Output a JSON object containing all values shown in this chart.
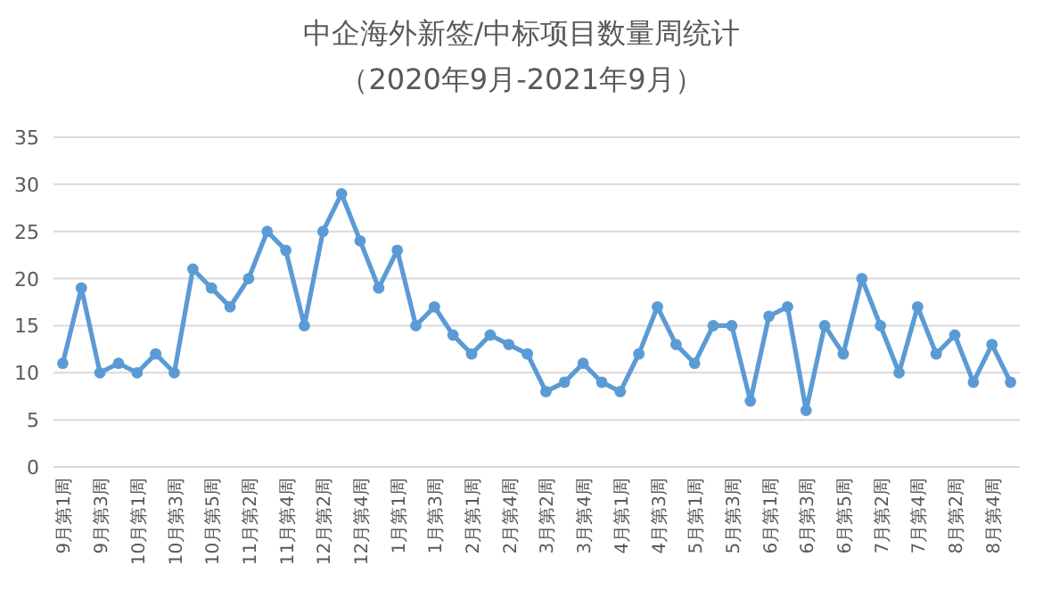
{
  "chart_data": {
    "type": "line",
    "title": "中企海外新签/中标项目数量周统计",
    "subtitle": "（2020年9月-2021年9月）",
    "categories": [
      "9月第1周",
      null,
      "9月第3周",
      null,
      "10月第1周",
      null,
      "10月第3周",
      null,
      "10月第5周",
      null,
      "11月第2周",
      null,
      "11月第4周",
      null,
      "12月第2周",
      null,
      "12月第4周",
      null,
      "1月第1周",
      null,
      "1月第3周",
      null,
      "2月第1周",
      null,
      "2月第4周",
      null,
      "3月第2周",
      null,
      "3月第4周",
      null,
      "4月第1周",
      null,
      "4月第3周",
      null,
      "5月第1周",
      null,
      "5月第3周",
      null,
      "6月第1周",
      null,
      "6月第3周",
      null,
      "6月第5周",
      null,
      "7月第2周",
      null,
      "7月第4周",
      null,
      "8月第2周",
      null,
      "8月第4周",
      null
    ],
    "series": [
      {
        "color": "#5b9bd5",
        "values": [
          11,
          19,
          10,
          11,
          10,
          12,
          10,
          21,
          19,
          17,
          20,
          25,
          23,
          15,
          25,
          29,
          24,
          19,
          23,
          15,
          17,
          14,
          12,
          14,
          13,
          12,
          8,
          9,
          11,
          9,
          8,
          12,
          17,
          13,
          11,
          15,
          15,
          7,
          16,
          17,
          6,
          15,
          12,
          20,
          15,
          10,
          17,
          12,
          14,
          9,
          13,
          9
        ]
      }
    ],
    "ylim": [
      0,
      35
    ],
    "yticks": [
      0,
      5,
      10,
      15,
      20,
      25,
      30,
      35
    ],
    "grid": "y",
    "marker": "circle",
    "line_style": "solid"
  }
}
